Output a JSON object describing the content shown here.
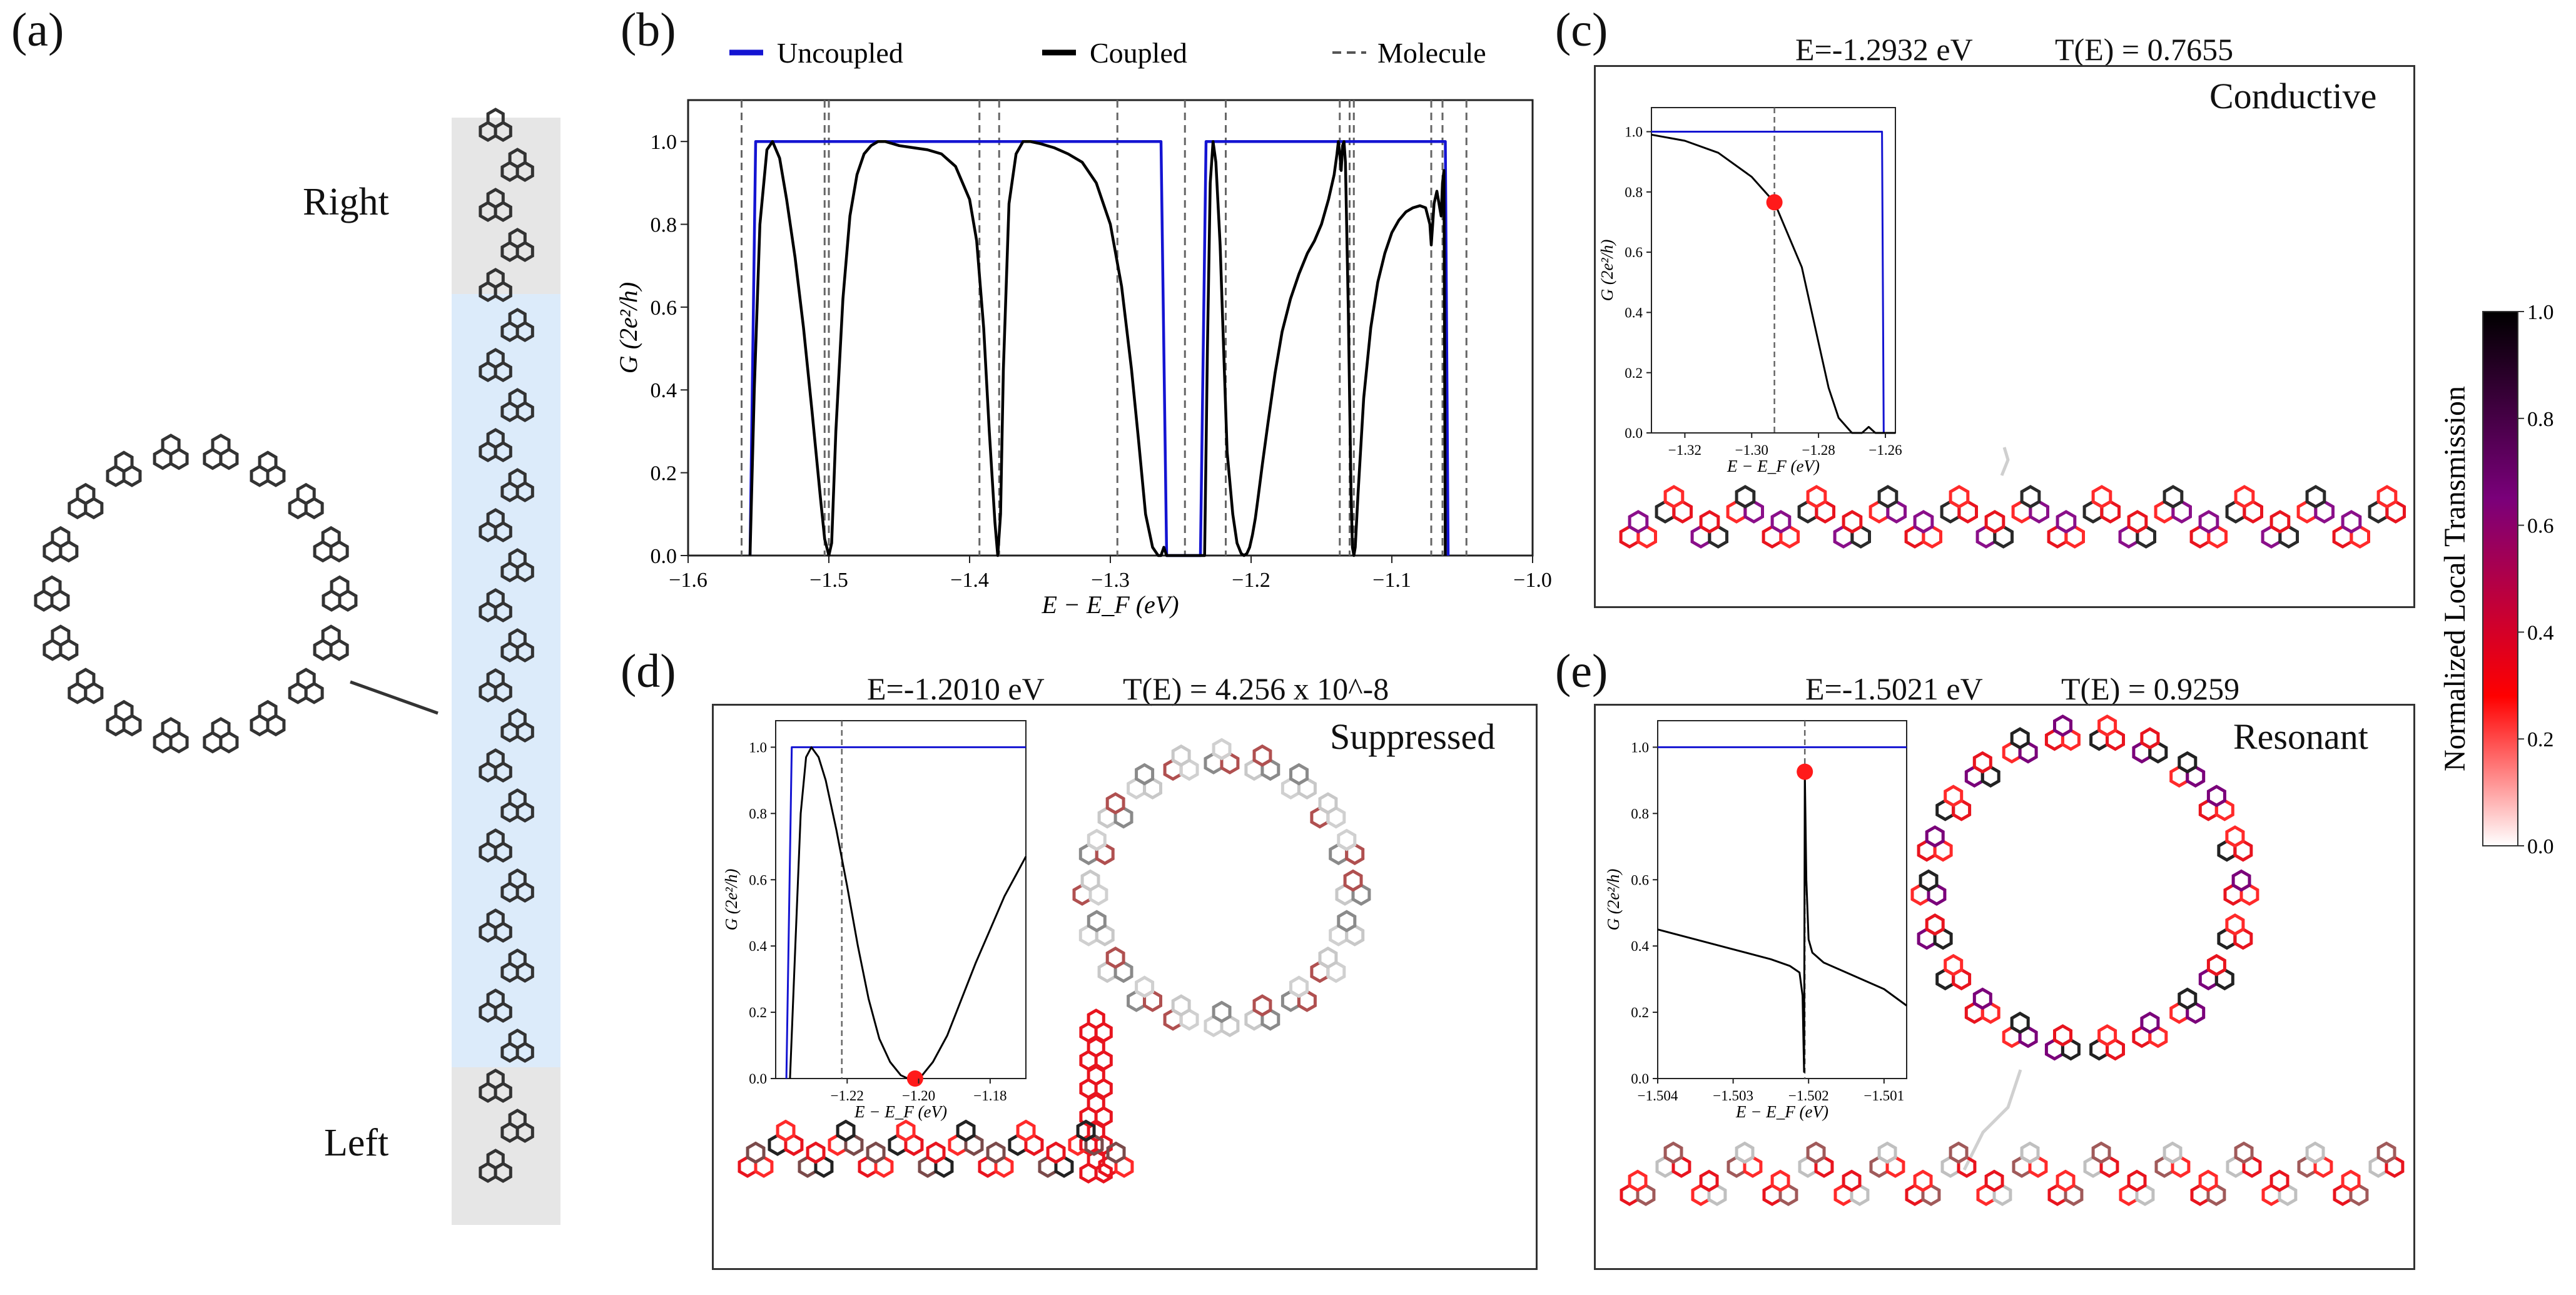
{
  "panels": {
    "a": {
      "label": "(a)",
      "right_label": "Right",
      "left_label": "Left"
    },
    "b": {
      "label": "(b)",
      "legend": [
        {
          "name": "Uncoupled",
          "style": "solid",
          "color": "#1414d2"
        },
        {
          "name": "Coupled",
          "style": "solid",
          "color": "#000000"
        },
        {
          "name": "Molecule",
          "style": "dashed",
          "color": "#555555"
        }
      ]
    },
    "c": {
      "label": "(c)",
      "energy": "E=-1.2932 eV",
      "transmission": "T(E) = 0.7655",
      "regime": "Conductive"
    },
    "d": {
      "label": "(d)",
      "energy": "E=-1.2010 eV",
      "transmission": "T(E) = 4.256 x 10^-8",
      "regime": "Suppressed"
    },
    "e": {
      "label": "(e)",
      "energy": "E=-1.5021 eV",
      "transmission": "T(E) = 0.9259",
      "regime": "Resonant"
    }
  },
  "colorbar": {
    "label": "Normalized Local Transmission",
    "ticks": [
      "1.0",
      "0.8",
      "0.6",
      "0.4",
      "0.2",
      "0.0"
    ],
    "colors": [
      "#000000",
      "#7a007a",
      "#ff0000",
      "#ffffff"
    ]
  },
  "axes": {
    "ylabel": "G (2e²/h)",
    "xlabel": "E − E_F (eV)"
  },
  "chart_data": [
    {
      "type": "line",
      "panel": "b",
      "xlim": [
        -1.6,
        -1.0
      ],
      "ylim": [
        0.0,
        1.1
      ],
      "xticks": [
        "−1.6",
        "−1.5",
        "−1.4",
        "−1.3",
        "−1.2",
        "−1.1",
        "−1.0"
      ],
      "yticks": [
        "0.0",
        "0.2",
        "0.4",
        "0.6",
        "0.8",
        "1.0"
      ],
      "molecule_levels": [
        -1.562,
        -1.503,
        -1.5,
        -1.393,
        -1.379,
        -1.295,
        -1.247,
        -1.218,
        -1.137,
        -1.13,
        -1.127,
        -1.072,
        -1.064,
        -1.047
      ],
      "series": [
        {
          "name": "Uncoupled",
          "x": [
            -1.556,
            -1.552,
            -1.264,
            -1.26,
            -1.236,
            -1.232,
            -1.062,
            -1.06
          ],
          "y": [
            0.0,
            1.0,
            1.0,
            0.0,
            0.0,
            1.0,
            1.0,
            0.0
          ]
        },
        {
          "name": "Coupled",
          "x": [
            -1.556,
            -1.553,
            -1.549,
            -1.544,
            -1.54,
            -1.535,
            -1.53,
            -1.524,
            -1.518,
            -1.512,
            -1.506,
            -1.503,
            -1.5,
            -1.498,
            -1.495,
            -1.49,
            -1.485,
            -1.48,
            -1.475,
            -1.47,
            -1.465,
            -1.46,
            -1.455,
            -1.45,
            -1.44,
            -1.43,
            -1.42,
            -1.41,
            -1.4,
            -1.395,
            -1.39,
            -1.386,
            -1.382,
            -1.38,
            -1.378,
            -1.376,
            -1.372,
            -1.367,
            -1.362,
            -1.357,
            -1.35,
            -1.34,
            -1.33,
            -1.32,
            -1.31,
            -1.3,
            -1.292,
            -1.285,
            -1.28,
            -1.275,
            -1.27,
            -1.266,
            -1.264,
            -1.262,
            -1.26,
            -1.233,
            -1.231,
            -1.229,
            -1.227,
            -1.225,
            -1.222,
            -1.219,
            -1.217,
            -1.213,
            -1.21,
            -1.207,
            -1.205,
            -1.203,
            -1.201,
            -1.199,
            -1.197,
            -1.195,
            -1.192,
            -1.188,
            -1.183,
            -1.178,
            -1.172,
            -1.166,
            -1.16,
            -1.155,
            -1.15,
            -1.145,
            -1.141,
            -1.139,
            -1.138,
            -1.137,
            -1.136,
            -1.135,
            -1.134,
            -1.133,
            -1.131,
            -1.129,
            -1.128,
            -1.127,
            -1.126,
            -1.124,
            -1.12,
            -1.115,
            -1.11,
            -1.105,
            -1.1,
            -1.095,
            -1.09,
            -1.085,
            -1.08,
            -1.076,
            -1.073,
            -1.072,
            -1.071,
            -1.07,
            -1.068,
            -1.066,
            -1.065,
            -1.064,
            -1.063,
            -1.062
          ],
          "y": [
            0.0,
            0.4,
            0.8,
            0.98,
            1.0,
            0.96,
            0.86,
            0.72,
            0.55,
            0.35,
            0.14,
            0.04,
            0.0,
            0.03,
            0.3,
            0.62,
            0.82,
            0.92,
            0.97,
            0.99,
            1.0,
            1.0,
            0.995,
            0.99,
            0.985,
            0.98,
            0.97,
            0.94,
            0.86,
            0.76,
            0.55,
            0.3,
            0.08,
            0.0,
            0.1,
            0.45,
            0.85,
            0.97,
            1.0,
            1.0,
            0.995,
            0.985,
            0.97,
            0.95,
            0.9,
            0.8,
            0.65,
            0.45,
            0.28,
            0.1,
            0.02,
            0.0,
            0.0,
            0.02,
            0.0,
            0.0,
            0.5,
            0.9,
            1.0,
            0.95,
            0.75,
            0.45,
            0.25,
            0.1,
            0.03,
            0.005,
            0.0,
            0.005,
            0.02,
            0.05,
            0.09,
            0.14,
            0.22,
            0.32,
            0.44,
            0.54,
            0.62,
            0.68,
            0.73,
            0.76,
            0.8,
            0.86,
            0.92,
            0.97,
            1.0,
            0.97,
            0.93,
            0.99,
            1.0,
            0.95,
            0.6,
            0.15,
            0.02,
            0.0,
            0.02,
            0.15,
            0.38,
            0.55,
            0.66,
            0.73,
            0.78,
            0.81,
            0.83,
            0.84,
            0.845,
            0.84,
            0.8,
            0.75,
            0.8,
            0.85,
            0.88,
            0.84,
            0.82,
            0.9,
            0.93,
            0.0
          ]
        }
      ]
    },
    {
      "type": "line",
      "panel": "c-inset",
      "xlim": [
        -1.33,
        -1.257
      ],
      "ylim": [
        0.0,
        1.08
      ],
      "xticks": [
        "−1.32",
        "−1.30",
        "−1.28",
        "−1.26"
      ],
      "yticks": [
        "0.0",
        "0.2",
        "0.4",
        "0.6",
        "0.8",
        "1.0"
      ],
      "dashed_x": -1.2932,
      "marker": {
        "x": -1.2932,
        "y": 0.7655
      },
      "series": [
        {
          "name": "Uncoupled",
          "x": [
            -1.33,
            -1.261,
            -1.2605,
            -1.257
          ],
          "y": [
            1.0,
            1.0,
            0.0,
            0.0
          ]
        },
        {
          "name": "Coupled",
          "x": [
            -1.33,
            -1.32,
            -1.31,
            -1.3,
            -1.2932,
            -1.285,
            -1.28,
            -1.277,
            -1.274,
            -1.27,
            -1.267,
            -1.265,
            -1.263,
            -1.26,
            -1.257
          ],
          "y": [
            0.99,
            0.97,
            0.93,
            0.85,
            0.7655,
            0.55,
            0.3,
            0.15,
            0.05,
            0.0,
            0.0,
            0.02,
            0.0,
            0.0,
            0.0
          ]
        }
      ]
    },
    {
      "type": "line",
      "panel": "d-inset",
      "xlim": [
        -1.24,
        -1.17
      ],
      "ylim": [
        0.0,
        1.08
      ],
      "xticks": [
        "−1.22",
        "−1.20",
        "−1.18"
      ],
      "yticks": [
        "0.0",
        "0.2",
        "0.4",
        "0.6",
        "0.8",
        "1.0"
      ],
      "dashed_x": -1.2215,
      "marker": {
        "x": -1.201,
        "y": 0.0
      },
      "series": [
        {
          "name": "Uncoupled",
          "x": [
            -1.237,
            -1.2355,
            -1.17
          ],
          "y": [
            0.0,
            1.0,
            1.0
          ]
        },
        {
          "name": "Coupled",
          "x": [
            -1.236,
            -1.2345,
            -1.233,
            -1.2315,
            -1.23,
            -1.228,
            -1.226,
            -1.223,
            -1.22,
            -1.217,
            -1.214,
            -1.211,
            -1.208,
            -1.205,
            -1.203,
            -1.201,
            -1.199,
            -1.196,
            -1.192,
            -1.188,
            -1.184,
            -1.18,
            -1.176,
            -1.172,
            -1.17
          ],
          "y": [
            0.0,
            0.4,
            0.8,
            0.97,
            1.0,
            0.97,
            0.9,
            0.75,
            0.58,
            0.4,
            0.24,
            0.12,
            0.05,
            0.01,
            0.0,
            0.0,
            0.01,
            0.05,
            0.13,
            0.24,
            0.35,
            0.45,
            0.55,
            0.63,
            0.67
          ]
        }
      ]
    },
    {
      "type": "line",
      "panel": "e-inset",
      "xlim": [
        -1.504,
        -1.5007
      ],
      "ylim": [
        0.0,
        1.08
      ],
      "xticks": [
        "−1.504",
        "−1.503",
        "−1.502",
        "−1.501"
      ],
      "yticks": [
        "0.0",
        "0.2",
        "0.4",
        "0.6",
        "0.8",
        "1.0"
      ],
      "dashed_x": -1.50205,
      "marker": {
        "x": -1.50205,
        "y": 0.9259
      },
      "series": [
        {
          "name": "Uncoupled",
          "x": [
            -1.504,
            -1.5007
          ],
          "y": [
            1.0,
            1.0
          ]
        },
        {
          "name": "Coupled",
          "x": [
            -1.504,
            -1.5035,
            -1.503,
            -1.5025,
            -1.50225,
            -1.50212,
            -1.50208,
            -1.50206,
            -1.50205,
            -1.50203,
            -1.502,
            -1.50195,
            -1.5018,
            -1.5015,
            -1.501,
            -1.5007
          ],
          "y": [
            0.45,
            0.42,
            0.39,
            0.36,
            0.34,
            0.32,
            0.25,
            0.02,
            0.9259,
            0.6,
            0.42,
            0.38,
            0.35,
            0.32,
            0.27,
            0.22
          ]
        }
      ]
    }
  ]
}
